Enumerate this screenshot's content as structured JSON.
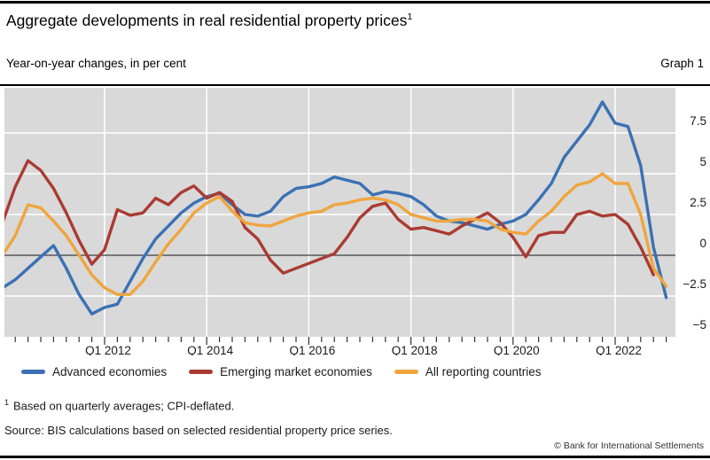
{
  "header": {
    "title": "Aggregate developments in real residential property prices",
    "title_superscript": "1",
    "subtitle": "Year-on-year changes, in per cent",
    "graph_label": "Graph 1"
  },
  "chart_data": {
    "type": "line",
    "title": "Aggregate developments in real residential property prices",
    "ylabel": "Year-on-year changes, in per cent",
    "x_unit": "quarter",
    "x": [
      "2010 Q1",
      "2010 Q2",
      "2010 Q3",
      "2010 Q4",
      "2011 Q1",
      "2011 Q2",
      "2011 Q3",
      "2011 Q4",
      "2012 Q1",
      "2012 Q2",
      "2012 Q3",
      "2012 Q4",
      "2013 Q1",
      "2013 Q2",
      "2013 Q3",
      "2013 Q4",
      "2014 Q1",
      "2014 Q2",
      "2014 Q3",
      "2014 Q4",
      "2015 Q1",
      "2015 Q2",
      "2015 Q3",
      "2015 Q4",
      "2016 Q1",
      "2016 Q2",
      "2016 Q3",
      "2016 Q4",
      "2017 Q1",
      "2017 Q2",
      "2017 Q3",
      "2017 Q4",
      "2018 Q1",
      "2018 Q2",
      "2018 Q3",
      "2018 Q4",
      "2019 Q1",
      "2019 Q2",
      "2019 Q3",
      "2019 Q4",
      "2020 Q1",
      "2020 Q2",
      "2020 Q3",
      "2020 Q4",
      "2021 Q1",
      "2021 Q2",
      "2021 Q3",
      "2021 Q4",
      "2022 Q1",
      "2022 Q2",
      "2022 Q3",
      "2022 Q4",
      "2023 Q1"
    ],
    "series": [
      {
        "name": "Advanced economies",
        "color": "#3B71B3",
        "values": [
          -2.0,
          -1.5,
          -0.8,
          -0.1,
          0.6,
          -0.8,
          -2.4,
          -3.6,
          -3.2,
          -3.0,
          -1.6,
          -0.2,
          1.0,
          1.8,
          2.6,
          3.2,
          3.6,
          3.8,
          3.1,
          2.5,
          2.4,
          2.7,
          3.6,
          4.1,
          4.2,
          4.4,
          4.8,
          4.6,
          4.4,
          3.7,
          3.9,
          3.8,
          3.6,
          3.1,
          2.4,
          2.1,
          2.0,
          1.8,
          1.6,
          1.9,
          2.1,
          2.5,
          3.4,
          4.4,
          6.0,
          7.0,
          8.0,
          9.4,
          8.1,
          7.9,
          5.5,
          0.5,
          -2.6
        ]
      },
      {
        "name": "Emerging market economies",
        "color": "#A93B33",
        "values": [
          2.0,
          4.2,
          5.8,
          5.2,
          4.1,
          2.6,
          0.9,
          -0.55,
          0.35,
          2.8,
          2.45,
          2.6,
          3.5,
          3.1,
          3.85,
          4.25,
          3.5,
          3.85,
          3.3,
          1.7,
          1.0,
          -0.3,
          -1.1,
          -0.8,
          -0.5,
          -0.2,
          0.1,
          1.1,
          2.3,
          3.0,
          3.2,
          2.2,
          1.6,
          1.7,
          1.5,
          1.3,
          1.8,
          2.2,
          2.6,
          2.0,
          1.1,
          -0.1,
          1.2,
          1.4,
          1.4,
          2.5,
          2.7,
          2.4,
          2.5,
          1.9,
          0.5,
          -1.2,
          null
        ]
      },
      {
        "name": "All reporting countries",
        "color": "#EFA53E",
        "values": [
          0.0,
          1.2,
          3.1,
          2.9,
          2.1,
          1.2,
          0.0,
          -1.2,
          -2.0,
          -2.4,
          -2.4,
          -1.6,
          -0.4,
          0.7,
          1.6,
          2.6,
          3.2,
          3.6,
          2.7,
          2.0,
          1.85,
          1.8,
          2.1,
          2.4,
          2.6,
          2.7,
          3.1,
          3.2,
          3.4,
          3.5,
          3.4,
          3.1,
          2.5,
          2.3,
          2.1,
          2.1,
          2.2,
          2.2,
          2.1,
          1.6,
          1.4,
          1.3,
          2.1,
          2.7,
          3.6,
          4.3,
          4.5,
          5.0,
          4.4,
          4.4,
          2.5,
          -0.8,
          -1.9
        ]
      }
    ],
    "y_ticks": [
      {
        "label": "7.5",
        "value": 7.5
      },
      {
        "label": "5",
        "value": 5
      },
      {
        "label": "2.5",
        "value": 2.5
      },
      {
        "label": "0",
        "value": 0
      },
      {
        "label": "−2.5",
        "value": -2.5
      },
      {
        "label": "−5",
        "value": -5
      }
    ],
    "x_ticks": [
      {
        "label": "Q1 2012",
        "quarter_index": 8
      },
      {
        "label": "Q1 2014",
        "quarter_index": 16
      },
      {
        "label": "Q1 2016",
        "quarter_index": 24
      },
      {
        "label": "Q1 2018",
        "quarter_index": 32
      },
      {
        "label": "Q1 2020",
        "quarter_index": 40
      },
      {
        "label": "Q1 2022",
        "quarter_index": 48
      }
    ],
    "ylim": [
      -5,
      10.3
    ],
    "gridlines": [
      7.5,
      5,
      2.5,
      -2.5
    ],
    "zero_line": 0,
    "grid_on": true,
    "legend_position": "bottom",
    "plot_bg_color": "#D9D9D9",
    "gridline_color": "#FFFFFF",
    "zero_line_color": "#58585A"
  },
  "legend": {
    "items": [
      {
        "label": "Advanced economies",
        "color": "#3B71B3"
      },
      {
        "label": "Emerging market economies",
        "color": "#A93B33"
      },
      {
        "label": "All reporting countries",
        "color": "#EFA53E"
      }
    ]
  },
  "footer": {
    "footnote_marker": "1",
    "footnote_text": "Based on quarterly averages; CPI-deflated.",
    "source": "Source: BIS calculations based on selected residential property price series.",
    "copyright": "© Bank for International Settlements"
  }
}
